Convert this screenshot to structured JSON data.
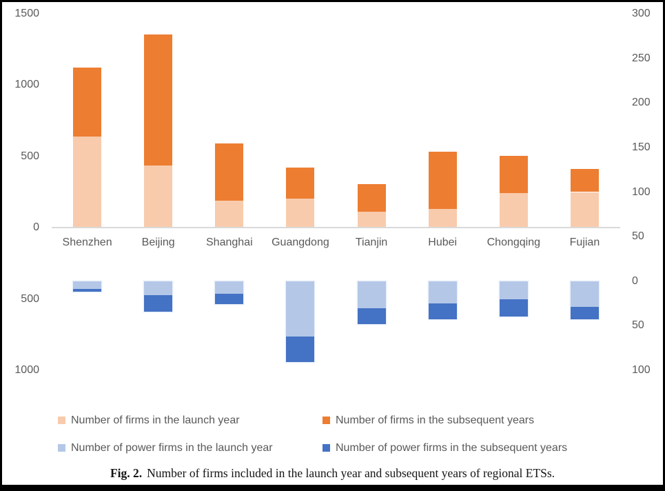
{
  "chart_data": {
    "type": "bar",
    "subtype": "stacked-column-dual-axis",
    "title": "",
    "categories": [
      "Shenzhen",
      "Beijing",
      "Shanghai",
      "Guangdong",
      "Tianjin",
      "Hubei",
      "Chongqing",
      "Fujian"
    ],
    "series": [
      {
        "name": "Number of firms in the launch year",
        "axis": "left",
        "direction": "up",
        "color": "#F8CBAD",
        "values": [
          640,
          435,
          190,
          205,
          110,
          130,
          245,
          250
        ]
      },
      {
        "name": "Number of firms in the subsequent years",
        "axis": "left",
        "direction": "up",
        "color": "#ED7D31",
        "values": [
          485,
          920,
          400,
          215,
          195,
          405,
          260,
          160
        ]
      },
      {
        "name": "Number of power firms in the launch year",
        "axis": "right",
        "direction": "down",
        "color": "#B4C7E7",
        "values": [
          9,
          16,
          14,
          62,
          30,
          25,
          20,
          29
        ]
      },
      {
        "name": "Number of power firms in the subsequent years",
        "axis": "right",
        "direction": "down",
        "color": "#4472C4",
        "values": [
          3,
          18,
          12,
          29,
          18,
          18,
          20,
          14
        ]
      }
    ],
    "left_axis": {
      "min": -1000,
      "max": 1500,
      "tick_step": 500,
      "tick_labels": [
        "1500",
        "1000",
        "500",
        "0",
        "500",
        "1000"
      ],
      "labels_absolute": true
    },
    "right_axis": {
      "min": -100,
      "max": 300,
      "tick_step": 50,
      "tick_labels": [
        "300",
        "250",
        "200",
        "150",
        "100",
        "50",
        "0",
        "50",
        "100"
      ],
      "labels_absolute": true
    },
    "grid": false,
    "legend_position": "bottom",
    "axis_line_color": "#D9D9D9",
    "axis_text_color": "#595959"
  },
  "figure": {
    "caption_label": "Fig. 2.",
    "caption_text": "Number of firms included in the launch year and subsequent years of regional ETSs."
  }
}
